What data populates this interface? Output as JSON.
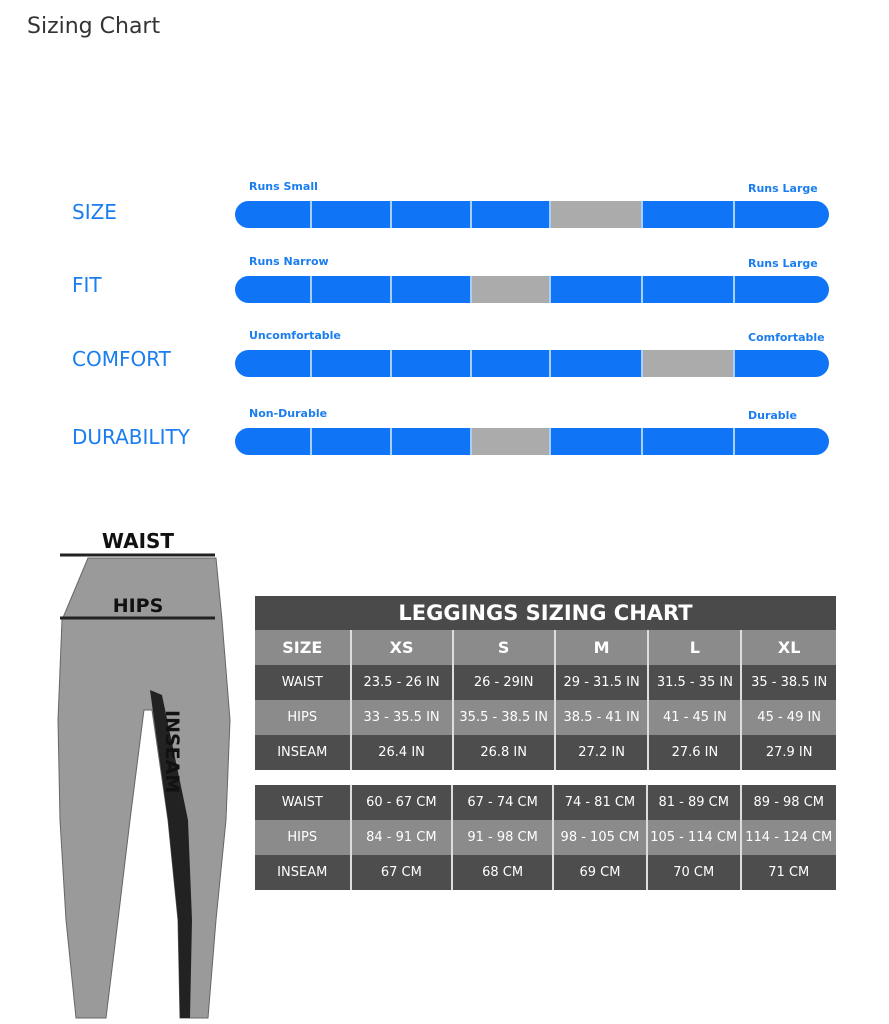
{
  "page_title": "Sizing Chart",
  "ratings": [
    {
      "label": "SIZE",
      "left": "Runs Small",
      "right": "Runs Large",
      "selected_segment": 5,
      "segments": 7
    },
    {
      "label": "FIT",
      "left": "Runs Narrow",
      "right": "Runs Large",
      "selected_segment": 4,
      "segments": 7
    },
    {
      "label": "COMFORT",
      "left": "Uncomfortable",
      "right": "Comfortable",
      "selected_segment": 6,
      "segments": 7
    },
    {
      "label": "DURABILITY",
      "left": "Non-Durable",
      "right": "Durable",
      "selected_segment": 4,
      "segments": 7
    }
  ],
  "colors": {
    "accent": "#0f74f5",
    "selected": "#ababab",
    "dark_row": "#4d4d4d",
    "light_row": "#8b8b8b"
  },
  "illustration": {
    "waist": "WAIST",
    "hips": "HIPS",
    "inseam": "INSEAM"
  },
  "table": {
    "title": "LEGGINGS SIZING CHART",
    "headers": [
      "SIZE",
      "XS",
      "S",
      "M",
      "L",
      "XL"
    ],
    "inches": [
      [
        "WAIST",
        "23.5 - 26 IN",
        "26 - 29IN",
        "29 - 31.5 IN",
        "31.5 - 35 IN",
        "35 - 38.5 IN"
      ],
      [
        "HIPS",
        "33 - 35.5 IN",
        "35.5 - 38.5 IN",
        "38.5 - 41 IN",
        "41 - 45 IN",
        "45 - 49 IN"
      ],
      [
        "INSEAM",
        "26.4 IN",
        "26.8 IN",
        "27.2 IN",
        "27.6 IN",
        "27.9 IN"
      ]
    ],
    "cm": [
      [
        "WAIST",
        "60 - 67 CM",
        "67 - 74 CM",
        "74 - 81 CM",
        "81 - 89 CM",
        "89 - 98 CM"
      ],
      [
        "HIPS",
        "84 - 91 CM",
        "91 - 98 CM",
        "98 - 105 CM",
        "105 - 114 CM",
        "114 - 124 CM"
      ],
      [
        "INSEAM",
        "67 CM",
        "68 CM",
        "69 CM",
        "70 CM",
        "71 CM"
      ]
    ]
  }
}
